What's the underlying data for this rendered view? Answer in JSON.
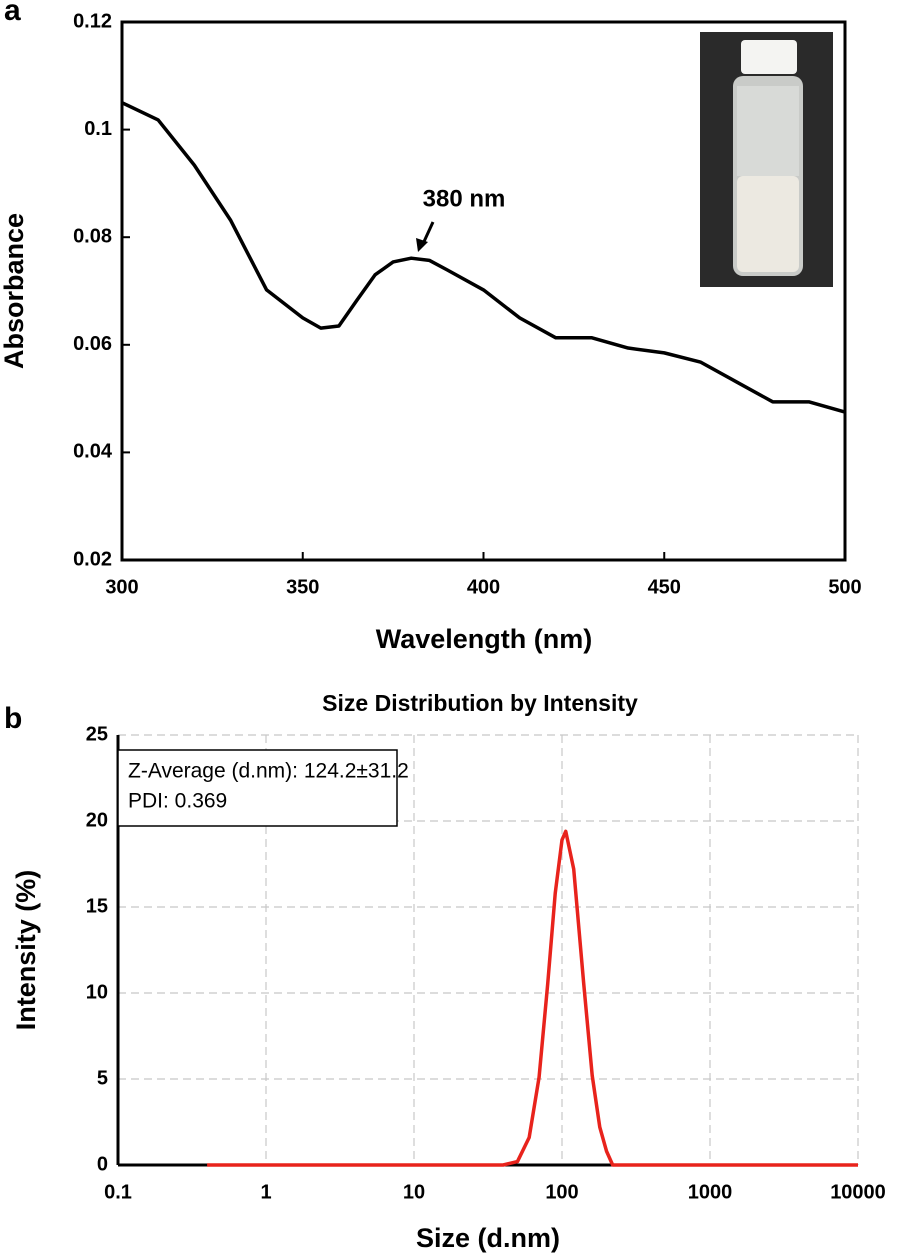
{
  "chart_data": [
    {
      "type": "line",
      "panel_label": "a",
      "annotation": "380 nm",
      "x_label": "Wavelength (nm)",
      "y_label": "Absorbance",
      "x": [
        300,
        310,
        320,
        330,
        340,
        350,
        355,
        360,
        365,
        370,
        375,
        380,
        385,
        390,
        400,
        410,
        420,
        430,
        440,
        450,
        460,
        470,
        480,
        490,
        500
      ],
      "values": [
        0.105,
        0.1018,
        0.0934,
        0.0832,
        0.0702,
        0.065,
        0.0631,
        0.0635,
        0.0683,
        0.073,
        0.0754,
        0.0761,
        0.0757,
        0.0739,
        0.0702,
        0.065,
        0.0613,
        0.0613,
        0.0594,
        0.0585,
        0.0568,
        0.0531,
        0.0494,
        0.0494,
        0.0475
      ],
      "color": "#000000",
      "xlim": [
        300,
        500
      ],
      "xticks": [
        300,
        350,
        400,
        450,
        500
      ],
      "ylim": [
        0.02,
        0.12
      ],
      "yticks": [
        0.02,
        0.04,
        0.06,
        0.08,
        0.1,
        0.12
      ],
      "grid": false
    },
    {
      "type": "line",
      "panel_label": "b",
      "title": "Size Distribution by Intensity",
      "text_box": [
        "Z-Average (d.nm): 124.2±31.2",
        "PDI: 0.369"
      ],
      "x_label": "Size (d.nm)",
      "y_label": "Intensity (%)",
      "x": [
        0.4,
        1,
        10,
        40,
        50,
        60,
        70,
        80,
        90,
        100,
        106,
        120,
        140,
        160,
        180,
        200,
        220,
        1000,
        10000
      ],
      "values": [
        0,
        0,
        0,
        0,
        0.2,
        1.6,
        5.1,
        10.5,
        15.8,
        18.9,
        19.4,
        17.2,
        10.6,
        5.2,
        2.2,
        0.8,
        0,
        0,
        0
      ],
      "color": "#e8231c",
      "xscale": "log",
      "xlim": [
        0.1,
        10000
      ],
      "xticks": [
        0.1,
        1,
        10,
        100,
        1000,
        10000
      ],
      "ylim": [
        0,
        25
      ],
      "yticks": [
        0,
        5,
        10,
        15,
        20,
        25
      ],
      "grid": true
    }
  ]
}
